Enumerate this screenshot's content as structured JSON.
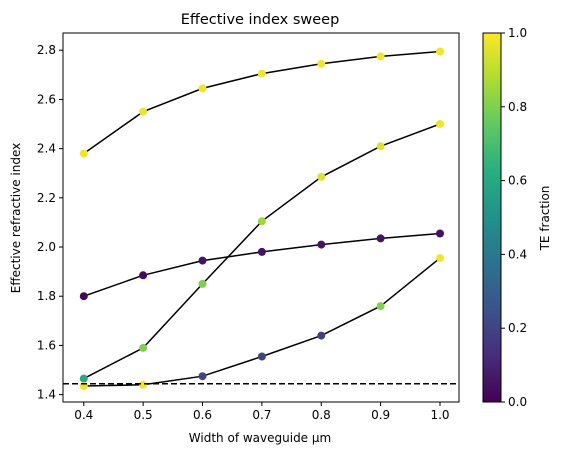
{
  "chart_data": {
    "type": "scatter",
    "title": "Effective index sweep",
    "xlabel": "Width of waveguide μm",
    "ylabel": "Effective refractive index",
    "xlim": [
      0.365,
      1.032
    ],
    "ylim": [
      1.37,
      2.87
    ],
    "xticks": [
      "0.4",
      "0.5",
      "0.6",
      "0.7",
      "0.8",
      "0.9",
      "1.0"
    ],
    "yticks": [
      "1.4",
      "1.6",
      "1.8",
      "2.0",
      "2.2",
      "2.4",
      "2.6",
      "2.8"
    ],
    "grid": false,
    "x": [
      0.4,
      0.5,
      0.6,
      0.7,
      0.8,
      0.9,
      1.0
    ],
    "series": [
      {
        "values": [
          2.38,
          2.55,
          2.645,
          2.705,
          2.745,
          2.775,
          2.795
        ],
        "te_fraction": [
          0.98,
          0.98,
          0.98,
          0.98,
          0.98,
          0.98,
          0.98
        ]
      },
      {
        "values": [
          1.465,
          1.59,
          1.85,
          2.105,
          2.285,
          2.41,
          2.5
        ],
        "te_fraction": [
          0.6,
          0.8,
          0.8,
          0.85,
          0.95,
          0.95,
          0.98
        ]
      },
      {
        "values": [
          1.8,
          1.885,
          1.945,
          1.98,
          2.01,
          2.035,
          2.055
        ],
        "te_fraction": [
          0.02,
          0.03,
          0.05,
          0.05,
          0.05,
          0.05,
          0.05
        ]
      },
      {
        "values": [
          1.435,
          1.44,
          1.475,
          1.555,
          1.64,
          1.76,
          1.955
        ],
        "te_fraction": [
          0.98,
          0.98,
          0.2,
          0.2,
          0.2,
          0.8,
          0.98
        ]
      }
    ],
    "hline": {
      "y": 1.444,
      "style": "dashed"
    },
    "colorbar": {
      "label": "TE fraction",
      "range": [
        0.0,
        1.0
      ],
      "ticks": [
        "0.0",
        "0.2",
        "0.4",
        "0.6",
        "0.8",
        "1.0"
      ],
      "colormap": "viridis"
    }
  }
}
